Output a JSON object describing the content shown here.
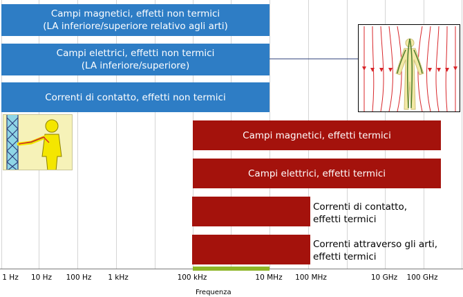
{
  "bands": [
    {
      "label": "Campi magnetici, effetti non termici\n(LA inferiore/superiore relativo agli arti)",
      "color": "#2e7dc5"
    },
    {
      "label": "Campi elettrici, effetti non termici\n(LA inferiore/superiore)",
      "color": "#2e7dc5"
    },
    {
      "label": "Correnti di contatto, effetti non termici",
      "color": "#2e7dc5"
    },
    {
      "label": "Campi magnetici, effetti termici",
      "color": "#a4120c"
    },
    {
      "label": "Campi elettrici, effetti termici",
      "color": "#a4120c"
    },
    {
      "label": "",
      "color": "#a4120c"
    },
    {
      "label": "",
      "color": "#a4120c"
    }
  ],
  "side_labels": [
    "Correnti di contatto,\neffetti termici",
    "Correnti attraverso gli arti,\neffetti termici"
  ],
  "axis": {
    "title": "Frequenza",
    "ticks": [
      "1 Hz",
      "10 Hz",
      "100 Hz",
      "1 kHz",
      "100 kHz",
      "10 MHz",
      "100 MHz",
      "10 GHz",
      "100 GHz"
    ]
  },
  "highlight_color": "#8db628",
  "illustrations": [
    "contact-current-figure-icon",
    "body-in-magnetic-field-icon"
  ]
}
